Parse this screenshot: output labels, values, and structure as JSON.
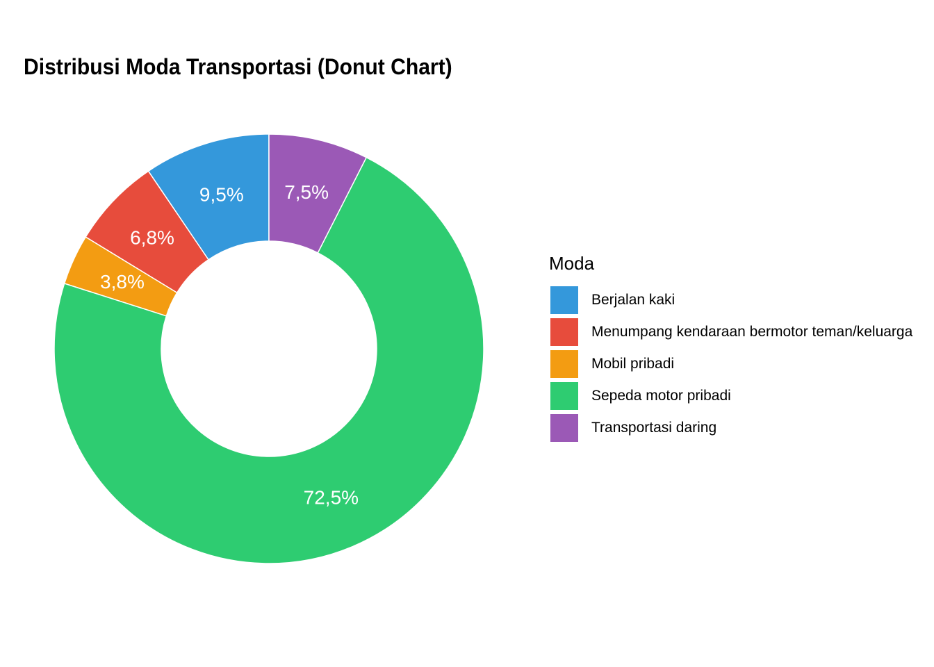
{
  "chart": {
    "title": "Distribusi Moda Transportasi (Donut Chart)",
    "legend_title": "Moda"
  },
  "chart_data": {
    "type": "pie",
    "subtype": "donut",
    "title": "Distribusi Moda Transportasi (Donut Chart)",
    "legend_title": "Moda",
    "legend_position": "right",
    "categories": [
      "Berjalan kaki",
      "Menumpang kendaraan bermotor teman/keluarga",
      "Mobil pribadi",
      "Sepeda motor pribadi",
      "Transportasi daring"
    ],
    "values": [
      9.5,
      6.8,
      3.8,
      72.5,
      7.5
    ],
    "labels": [
      "9,5%",
      "6,8%",
      "3,8%",
      "72,5%",
      "7,5%"
    ],
    "colors": [
      "#3498db",
      "#e74c3c",
      "#f39c12",
      "#2ecc71",
      "#9b59b6"
    ],
    "direction": "counterclockwise from top"
  },
  "legend": {
    "items": [
      {
        "label": "Berjalan kaki",
        "color": "#3498db"
      },
      {
        "label": "Menumpang kendaraan bermotor teman/keluarga",
        "color": "#e74c3c"
      },
      {
        "label": "Mobil pribadi",
        "color": "#f39c12"
      },
      {
        "label": "Sepeda motor pribadi",
        "color": "#2ecc71"
      },
      {
        "label": "Transportasi daring",
        "color": "#9b59b6"
      }
    ]
  }
}
